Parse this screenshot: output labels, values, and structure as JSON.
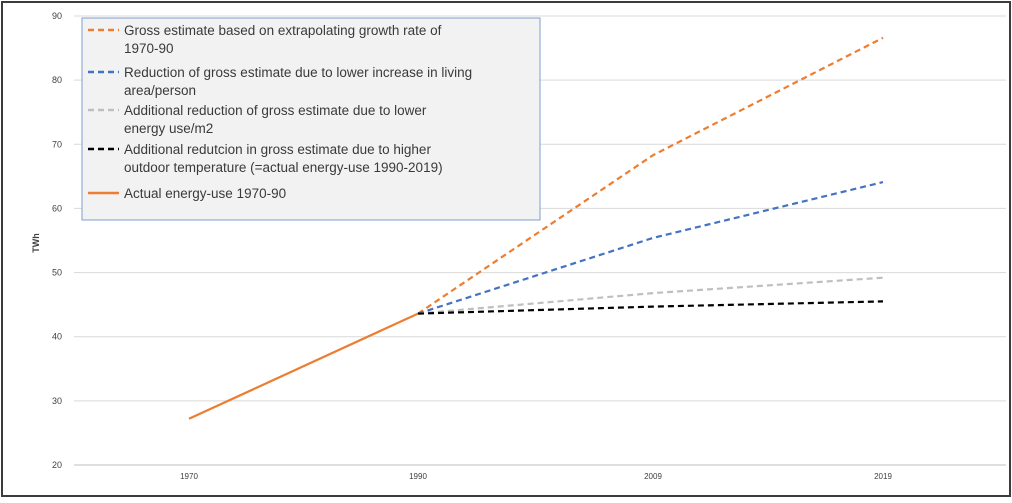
{
  "chart_data": {
    "type": "line",
    "title": "",
    "xlabel": "",
    "ylabel": "TWh",
    "x": [
      "1970",
      "1990",
      "2009",
      "2019"
    ],
    "ylim": [
      20,
      90
    ],
    "yticks": [
      "20",
      "30",
      "40",
      "50",
      "60",
      "70",
      "80",
      "90"
    ],
    "grid": "horizontal",
    "legend_position": "top-left",
    "legend": [
      {
        "line1": "Gross estimate based on extrapolating growth rate of",
        "line2": "1970-90"
      },
      {
        "line1": "Reduction of gross estimate due to lower increase in living",
        "line2": "area/person"
      },
      {
        "line1": "Additional reduction of gross estimate due to  lower",
        "line2": "energy use/m2"
      },
      {
        "line1": "Additional redutcion in gross estimate due to higher",
        "line2": "outdoor temperature  (=actual energy-use 1990-2019)"
      },
      {
        "line1": "Actual energy-use 1970-90",
        "line2": ""
      }
    ],
    "series": [
      {
        "name": "Gross estimate based on extrapolating growth rate of 1970-90",
        "color": "#ed7d31",
        "dash": true,
        "points": [
          [
            "1990",
            43.6
          ],
          [
            "2009",
            68.3
          ],
          [
            "2019",
            86.6
          ]
        ]
      },
      {
        "name": "Reduction of gross estimate due to lower increase in living area/person",
        "color": "#4472c4",
        "dash": true,
        "points": [
          [
            "1990",
            43.6
          ],
          [
            "2009",
            55.4
          ],
          [
            "2019",
            64.1
          ]
        ]
      },
      {
        "name": "Additional reduction of gross estimate due to  lower energy use/m2",
        "color": "#bfbfbf",
        "dash": true,
        "points": [
          [
            "1990",
            43.6
          ],
          [
            "2009",
            46.8
          ],
          [
            "2019",
            49.2
          ]
        ]
      },
      {
        "name": "Additional redutcion in gross estimate due to higher outdoor temperature  (=actual energy-use 1990-2019)",
        "color": "#000000",
        "dash": true,
        "points": [
          [
            "1990",
            43.6
          ],
          [
            "2009",
            44.7
          ],
          [
            "2019",
            45.5
          ]
        ]
      },
      {
        "name": "Actual energy-use 1970-90",
        "color": "#ed7d31",
        "dash": false,
        "points": [
          [
            "1970",
            27.2
          ],
          [
            "1990",
            43.6
          ]
        ]
      }
    ]
  }
}
